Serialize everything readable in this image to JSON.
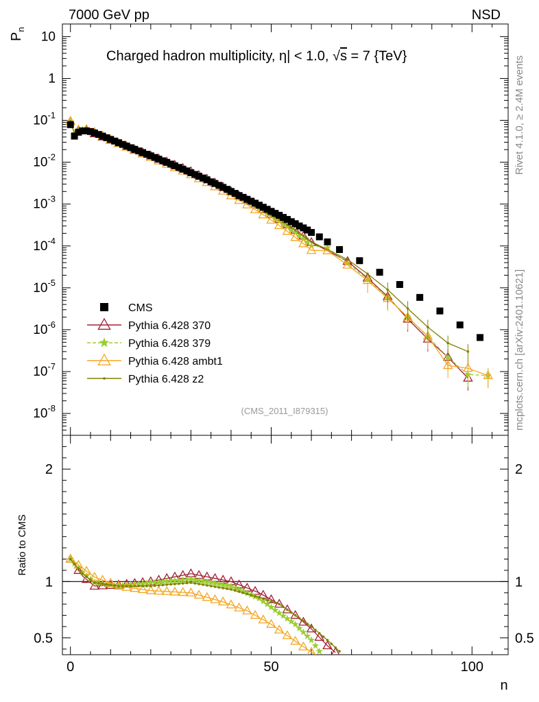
{
  "header": {
    "energy_label": "7000 GeV pp",
    "process_label": "NSD",
    "ylabel_main_base": "P",
    "ylabel_main_sub": "n",
    "ylabel_ratio": "Ratio to CMS",
    "xlabel": "n"
  },
  "side_labels": {
    "rivet": "Rivet 4.1.0, ≥ 2.4M events",
    "mcplots": "mcplots.cern.ch [arXiv:2401.10621]"
  },
  "chart_data": {
    "type": "scatter",
    "title": "Charged hadron multiplicity, |η| < 1.0, √s = 7 {TeV}",
    "title_parts": {
      "pre": "Charged hadron multiplicity, ",
      "eta": "η",
      "cut": "| < 1.0, ",
      "sqrt": "√",
      "s": "s",
      "post": " = 7 {TeV}"
    },
    "analysis_tag": "(CMS_2011_I879315)",
    "xlim": [
      -2,
      109
    ],
    "ylim_main": [
      3e-09,
      20
    ],
    "ylim_ratio": [
      0.35,
      2.3
    ],
    "x_ticks": [
      0,
      50,
      100
    ],
    "y_ticks_main": [
      {
        "exp": "-8"
      },
      {
        "exp": "-7"
      },
      {
        "exp": "-6"
      },
      {
        "exp": "-5"
      },
      {
        "exp": "-4"
      },
      {
        "exp": "-3"
      },
      {
        "exp": "-2"
      },
      {
        "exp": "-1"
      },
      {
        "plain": "1"
      },
      {
        "plain": "10"
      }
    ],
    "y_tick_values_main": [
      1e-08,
      1e-07,
      1e-06,
      1e-05,
      0.0001,
      0.001,
      0.01,
      0.1,
      1,
      10
    ],
    "y_ticks_ratio": [
      0.5,
      1,
      2
    ],
    "y_ticks_ratio_labels": [
      "0.5",
      "1",
      "2"
    ],
    "reference": {
      "name": "CMS",
      "color": "#000000",
      "points": [
        [
          0,
          0.079
        ],
        [
          1,
          0.042
        ],
        [
          2,
          0.052
        ],
        [
          3,
          0.056
        ],
        [
          4,
          0.056
        ],
        [
          5,
          0.054
        ],
        [
          6,
          0.05
        ],
        [
          7,
          0.046
        ],
        [
          8,
          0.042
        ],
        [
          9,
          0.0385
        ],
        [
          10,
          0.035
        ],
        [
          11,
          0.032
        ],
        [
          12,
          0.0292
        ],
        [
          13,
          0.0266
        ],
        [
          14,
          0.0243
        ],
        [
          15,
          0.0222
        ],
        [
          16,
          0.0203
        ],
        [
          17,
          0.0186
        ],
        [
          18,
          0.017
        ],
        [
          19,
          0.0155
        ],
        [
          20,
          0.0142
        ],
        [
          21,
          0.013
        ],
        [
          22,
          0.0118
        ],
        [
          23,
          0.0108
        ],
        [
          24,
          0.0099
        ],
        [
          25,
          0.009
        ],
        [
          26,
          0.0082
        ],
        [
          27,
          0.0075
        ],
        [
          28,
          0.0068
        ],
        [
          29,
          0.0062
        ],
        [
          30,
          0.0056
        ],
        [
          31,
          0.0051
        ],
        [
          32,
          0.0046
        ],
        [
          33,
          0.0042
        ],
        [
          34,
          0.0038
        ],
        [
          35,
          0.0034
        ],
        [
          36,
          0.0031
        ],
        [
          37,
          0.0028
        ],
        [
          38,
          0.0025
        ],
        [
          39,
          0.00225
        ],
        [
          40,
          0.002
        ],
        [
          41,
          0.0018
        ],
        [
          42,
          0.0016
        ],
        [
          43,
          0.00145
        ],
        [
          44,
          0.0013
        ],
        [
          45,
          0.00117
        ],
        [
          46,
          0.00105
        ],
        [
          47,
          0.00094
        ],
        [
          48,
          0.00084
        ],
        [
          49,
          0.00075
        ],
        [
          50,
          0.00067
        ],
        [
          51,
          0.0006
        ],
        [
          52,
          0.00054
        ],
        [
          53,
          0.00048
        ],
        [
          54,
          0.00043
        ],
        [
          55,
          0.00038
        ],
        [
          56,
          0.00034
        ],
        [
          57,
          0.0003
        ],
        [
          58,
          0.00027
        ],
        [
          59,
          0.00024
        ],
        [
          60,
          0.00021
        ],
        [
          62,
          0.000165
        ],
        [
          64,
          0.000125
        ],
        [
          67,
          8.2e-05
        ],
        [
          72,
          4.45e-05
        ],
        [
          77,
          2.35e-05
        ],
        [
          82,
          1.2e-05
        ],
        [
          87,
          5.9e-06
        ],
        [
          92,
          2.8e-06
        ],
        [
          97,
          1.3e-06
        ],
        [
          102,
          6.5e-07
        ]
      ]
    },
    "legend": [
      "CMS",
      "Pythia 6.428 370",
      "Pythia 6.428 379",
      "Pythia 6.428 ambt1",
      "Pythia 6.428 z2"
    ],
    "series": [
      {
        "name": "Pythia 6.428 370",
        "color": "#a02035",
        "marker": "triangle-open",
        "dash": false,
        "step": 2,
        "ratio_knots": [
          [
            0,
            1.2
          ],
          [
            3,
            1.05
          ],
          [
            6,
            0.96
          ],
          [
            12,
            0.97
          ],
          [
            20,
            1.0
          ],
          [
            30,
            1.07
          ],
          [
            40,
            1.0
          ],
          [
            47,
            0.9
          ],
          [
            52,
            0.8
          ],
          [
            56,
            0.7
          ],
          [
            60,
            0.58
          ],
          [
            64,
            0.43
          ],
          [
            66,
            0.37
          ]
        ],
        "tail": [
          [
            69,
            4.3e-05
          ],
          [
            74,
            1.72e-05
          ],
          [
            79,
            6.2e-06
          ],
          [
            84,
            1.8e-06
          ],
          [
            89,
            6e-07
          ],
          [
            94,
            2.2e-07
          ],
          [
            99,
            7e-08
          ]
        ]
      },
      {
        "name": "Pythia 6.428 379",
        "color": "#9acd32",
        "marker": "star",
        "dash": true,
        "step": 1,
        "ratio_knots": [
          [
            0,
            1.2
          ],
          [
            3,
            1.08
          ],
          [
            6,
            0.99
          ],
          [
            12,
            0.96
          ],
          [
            20,
            0.99
          ],
          [
            30,
            1.02
          ],
          [
            40,
            0.96
          ],
          [
            47,
            0.85
          ],
          [
            52,
            0.72
          ],
          [
            56,
            0.62
          ],
          [
            60,
            0.48
          ],
          [
            62,
            0.38
          ]
        ],
        "tail": [
          [
            64,
            9.1e-05
          ],
          [
            69,
            3.95e-05
          ],
          [
            74,
            1.6e-05
          ],
          [
            79,
            5.9e-06
          ],
          [
            84,
            2e-06
          ],
          [
            89,
            6.8e-07
          ],
          [
            94,
            2.2e-07
          ],
          [
            99,
            8.5e-08
          ],
          [
            104,
            8e-08
          ]
        ]
      },
      {
        "name": "Pythia 6.428 ambt1",
        "color": "#f5a623",
        "marker": "triangle-open",
        "dash": false,
        "step": 2,
        "ratio_knots": [
          [
            0,
            1.2
          ],
          [
            3,
            1.12
          ],
          [
            6,
            1.04
          ],
          [
            12,
            0.96
          ],
          [
            20,
            0.92
          ],
          [
            30,
            0.9
          ],
          [
            38,
            0.82
          ],
          [
            44,
            0.74
          ],
          [
            50,
            0.62
          ],
          [
            54,
            0.52
          ],
          [
            58,
            0.42
          ],
          [
            61,
            0.35
          ]
        ],
        "tail": [
          [
            64,
            7.7e-05
          ],
          [
            69,
            3.5e-05
          ],
          [
            74,
            1.5e-05
          ],
          [
            79,
            5.6e-06
          ],
          [
            84,
            2e-06
          ],
          [
            89,
            7e-07
          ],
          [
            94,
            1.4e-07
          ],
          [
            99,
            1.2e-07
          ],
          [
            104,
            8e-08
          ]
        ]
      },
      {
        "name": "Pythia 6.428 z2",
        "color": "#808000",
        "marker": "dot",
        "dash": false,
        "step": 1,
        "ratio_knots": [
          [
            0,
            1.2
          ],
          [
            3,
            1.07
          ],
          [
            6,
            0.99
          ],
          [
            12,
            0.96
          ],
          [
            20,
            0.96
          ],
          [
            30,
            0.99
          ],
          [
            40,
            0.93
          ],
          [
            47,
            0.86
          ],
          [
            52,
            0.8
          ],
          [
            56,
            0.7
          ],
          [
            60,
            0.6
          ],
          [
            64,
            0.48
          ],
          [
            67,
            0.38
          ]
        ],
        "tail": [
          [
            69,
            4.75e-05
          ],
          [
            74,
            2.15e-05
          ],
          [
            79,
            9e-06
          ],
          [
            84,
            3.2e-06
          ],
          [
            89,
            1.15e-06
          ],
          [
            94,
            4.8e-07
          ],
          [
            99,
            3e-07
          ]
        ]
      }
    ]
  }
}
